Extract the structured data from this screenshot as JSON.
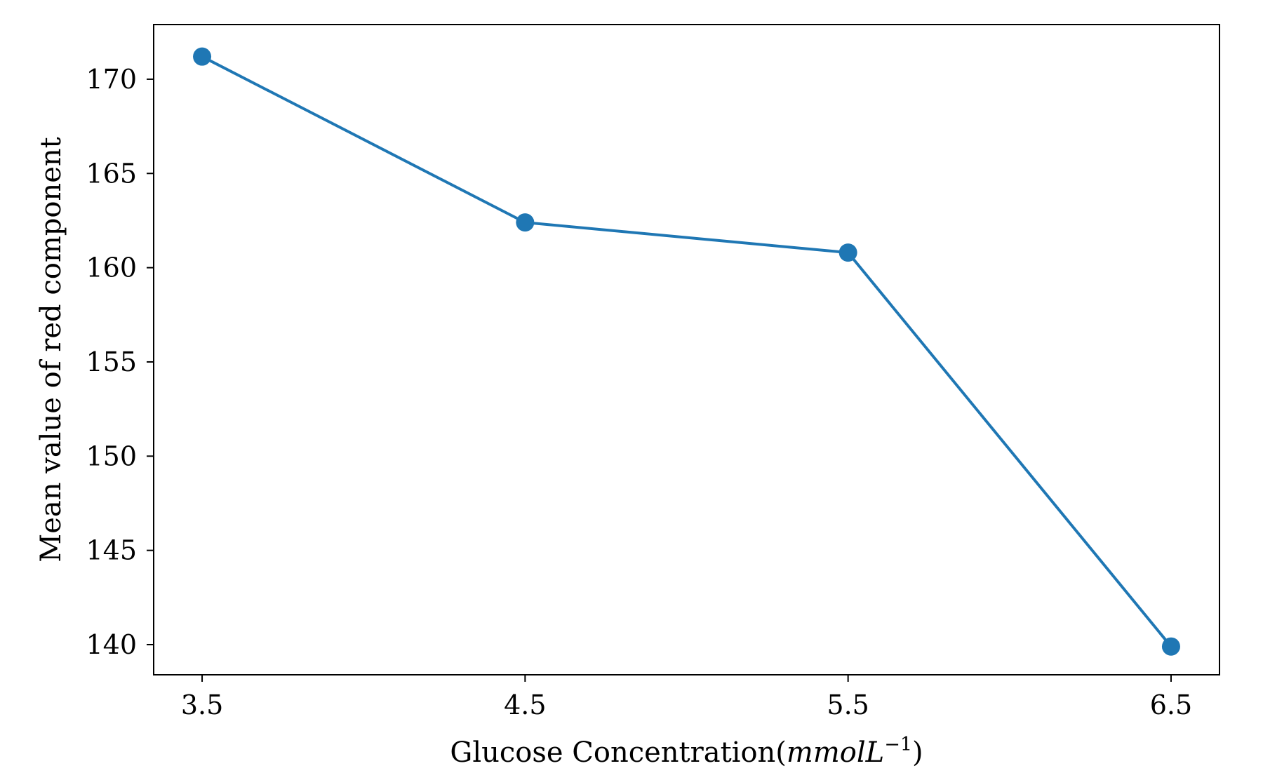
{
  "chart_data": {
    "type": "line",
    "title": "",
    "xlabel_text": "Glucose Concentration(",
    "xlabel_math": "mmolL",
    "xlabel_sup": "−1",
    "xlabel_close": ")",
    "ylabel": "Mean value of red component",
    "x": [
      3.5,
      4.5,
      5.5,
      6.5
    ],
    "x_tick_labels": [
      "3.5",
      "4.5",
      "5.5",
      "6.5"
    ],
    "y_ticks": [
      140,
      145,
      150,
      155,
      160,
      165,
      170
    ],
    "xlim": [
      3.35,
      6.65
    ],
    "ylim": [
      138.4,
      172.9
    ],
    "grid": false,
    "series": [
      {
        "values": [
          171.2,
          162.4,
          160.8,
          139.9
        ],
        "color": "#1f77b4",
        "marker": "circle"
      }
    ]
  }
}
